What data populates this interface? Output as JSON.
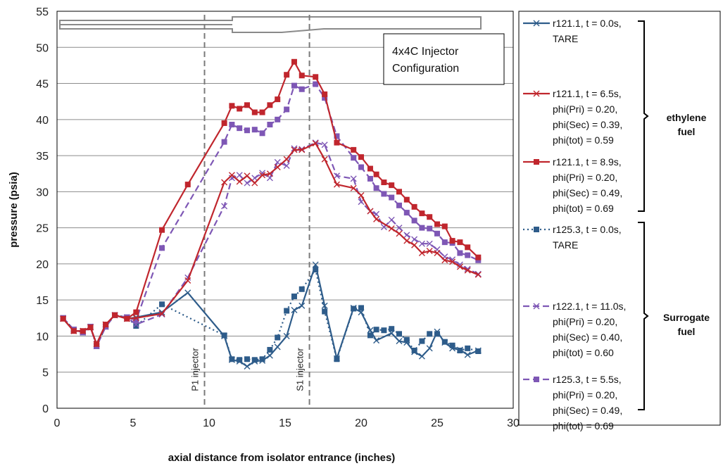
{
  "chart_data": {
    "type": "line",
    "xlabel": "axial distance from isolator entrance (inches)",
    "ylabel": "pressure (psia)",
    "xlim": [
      0,
      30
    ],
    "ylim": [
      0,
      55
    ],
    "xticks": [
      0,
      5,
      10,
      15,
      20,
      25,
      30
    ],
    "yticks": [
      0,
      5,
      10,
      15,
      20,
      25,
      30,
      35,
      40,
      45,
      50,
      55
    ],
    "grid": "horizontal",
    "legend_position": "right",
    "config_box": [
      "4x4C  Injector",
      "Configuration"
    ],
    "vlines": [
      {
        "x": 9.7,
        "label": "P1 injector"
      },
      {
        "x": 16.6,
        "label": "S1 injector"
      }
    ],
    "groups": [
      {
        "lines": [
          "ethylene",
          "fuel"
        ]
      },
      {
        "lines": [
          "Surrogate",
          "fuel"
        ]
      }
    ],
    "series": [
      {
        "name_lines": [
          "r121.1, t = 0.0s,",
          "TARE"
        ],
        "color": "#2E5C8A",
        "dash": "solid",
        "marker": "x",
        "x": [
          0.4,
          1.1,
          1.7,
          2.2,
          2.6,
          3.2,
          3.8,
          4.6,
          5.2,
          6.9,
          8.6,
          11.0,
          11.5,
          12.0,
          12.5,
          13.0,
          13.5,
          14.0,
          14.5,
          15.1,
          15.6,
          16.1,
          17.0,
          17.6,
          18.4,
          19.5,
          20.0,
          20.6,
          21.0,
          22.0,
          22.5,
          23.0,
          23.5,
          24.0,
          24.5,
          25.0,
          25.5,
          26.0,
          26.5,
          27.0,
          27.7
        ],
        "y": [
          12.4,
          10.7,
          10.7,
          11.2,
          8.9,
          11.6,
          12.9,
          12.4,
          12.6,
          13.3,
          16.0,
          10.0,
          6.7,
          6.5,
          5.8,
          6.5,
          6.6,
          7.3,
          8.5,
          10.0,
          13.6,
          14.2,
          19.9,
          14.2,
          6.9,
          13.9,
          13.3,
          10.8,
          9.4,
          10.4,
          9.3,
          9.1,
          7.8,
          7.2,
          8.3,
          10.6,
          9.1,
          8.3,
          8.1,
          7.4,
          8.0
        ]
      },
      {
        "name_lines": [
          "r121.1, t = 6.5s,",
          "phi(Pri) = 0.20,",
          "phi(Sec) = 0.39,",
          "phi(tot) = 0.59"
        ],
        "color": "#C0262D",
        "dash": "solid",
        "marker": "x",
        "x": [
          0.4,
          1.1,
          1.7,
          2.2,
          2.6,
          3.2,
          3.8,
          4.6,
          5.2,
          6.9,
          8.6,
          11.0,
          11.5,
          12.0,
          12.5,
          13.0,
          13.5,
          14.0,
          14.5,
          15.1,
          15.6,
          16.1,
          17.0,
          17.6,
          18.4,
          19.5,
          20.0,
          20.6,
          21.0,
          22.0,
          22.5,
          23.0,
          23.5,
          24.0,
          24.5,
          25.0,
          25.5,
          26.0,
          26.5,
          27.0,
          27.7
        ],
        "y": [
          12.4,
          10.7,
          10.7,
          11.2,
          8.9,
          11.6,
          12.9,
          12.4,
          12.5,
          13.1,
          17.7,
          31.3,
          32.3,
          31.4,
          32.2,
          31.2,
          32.3,
          32.5,
          33.4,
          34.5,
          35.8,
          35.8,
          36.7,
          34.5,
          31.0,
          30.5,
          29.5,
          27.3,
          26.2,
          24.9,
          24.2,
          23.2,
          22.6,
          21.5,
          21.8,
          21.5,
          20.5,
          20.3,
          19.6,
          19.1,
          18.5
        ]
      },
      {
        "name_lines": [
          "r121.1, t = 8.9s,",
          "phi(Pri) = 0.20,",
          "phi(Sec) = 0.49,",
          "phi(tot) = 0.69"
        ],
        "color": "#C0262D",
        "dash": "solid",
        "marker": "square",
        "x": [
          0.4,
          1.1,
          1.7,
          2.2,
          2.6,
          3.2,
          3.8,
          4.6,
          5.2,
          6.9,
          8.6,
          11.0,
          11.5,
          12.0,
          12.5,
          13.0,
          13.5,
          14.0,
          14.5,
          15.1,
          15.6,
          16.1,
          17.0,
          17.6,
          18.4,
          19.5,
          20.0,
          20.6,
          21.0,
          21.5,
          22.0,
          22.5,
          23.0,
          23.5,
          24.0,
          24.5,
          25.0,
          25.5,
          26.0,
          26.5,
          27.0,
          27.7
        ],
        "y": [
          12.4,
          10.7,
          10.7,
          11.2,
          8.9,
          11.6,
          12.9,
          12.4,
          13.3,
          24.7,
          31.0,
          39.5,
          41.9,
          41.5,
          42.0,
          41.0,
          41.0,
          42.0,
          42.8,
          46.2,
          48.0,
          46.1,
          45.9,
          43.5,
          36.8,
          35.8,
          34.8,
          33.2,
          32.4,
          31.3,
          30.9,
          30.0,
          28.9,
          27.9,
          27.0,
          26.5,
          25.5,
          25.2,
          23.2,
          23.0,
          22.3,
          20.9
        ]
      },
      {
        "name_lines": [
          "r125.3, t = 0.0s,",
          "TARE"
        ],
        "color": "#2E5C8A",
        "dash": "dot",
        "marker": "square",
        "x": [
          0.4,
          1.1,
          1.7,
          2.2,
          2.6,
          3.2,
          3.8,
          4.6,
          5.2,
          6.9,
          11.0,
          11.5,
          12.0,
          12.5,
          13.0,
          13.5,
          14.0,
          14.5,
          15.1,
          15.6,
          16.1,
          17.0,
          17.6,
          18.4,
          19.5,
          20.0,
          20.6,
          21.0,
          21.5,
          22.0,
          22.5,
          23.0,
          23.5,
          24.0,
          24.5,
          25.0,
          25.5,
          26.0,
          26.5,
          27.0,
          27.7
        ],
        "y": [
          12.5,
          10.9,
          10.5,
          11.3,
          8.6,
          11.3,
          12.9,
          12.6,
          11.4,
          14.4,
          10.1,
          6.8,
          6.7,
          6.8,
          6.7,
          6.8,
          8.1,
          9.8,
          13.5,
          15.5,
          16.5,
          19.2,
          13.4,
          6.8,
          13.8,
          13.9,
          10.1,
          10.9,
          10.8,
          11.0,
          10.3,
          9.5,
          8.0,
          9.3,
          10.3,
          10.3,
          9.2,
          8.7,
          8.0,
          8.3,
          7.9
        ]
      },
      {
        "name_lines": [
          "r122.1, t = 11.0s,",
          "phi(Pri) = 0.20,",
          "phi(Sec) = 0.40,",
          "phi(tot) = 0.60"
        ],
        "color": "#7E57B5",
        "dash": "dash",
        "marker": "x",
        "x": [
          0.4,
          1.1,
          1.7,
          2.2,
          2.6,
          3.2,
          3.8,
          4.6,
          5.2,
          6.9,
          8.6,
          11.0,
          11.5,
          12.0,
          12.5,
          13.0,
          13.5,
          14.0,
          14.5,
          15.1,
          15.6,
          16.1,
          17.0,
          17.6,
          18.4,
          19.5,
          20.0,
          20.6,
          21.0,
          21.5,
          22.0,
          22.5,
          23.0,
          23.5,
          24.0,
          24.5,
          25.0,
          25.5,
          26.0,
          26.5,
          27.0,
          27.7
        ],
        "y": [
          12.5,
          10.9,
          10.5,
          11.3,
          8.6,
          11.3,
          12.9,
          12.6,
          11.6,
          13.0,
          18.1,
          28.0,
          31.9,
          32.3,
          31.2,
          31.9,
          32.6,
          31.9,
          34.1,
          33.6,
          36.0,
          35.9,
          36.8,
          36.5,
          32.2,
          31.8,
          28.6,
          27.3,
          26.9,
          25.1,
          26.1,
          25.0,
          24.0,
          23.4,
          22.8,
          22.8,
          22.0,
          21.0,
          20.6,
          19.9,
          19.3,
          18.6
        ]
      },
      {
        "name_lines": [
          "r125.3, t = 5.5s,",
          "phi(Pri) = 0.20,",
          "phi(Sec) = 0.49,",
          "phi(tot) = 0.69"
        ],
        "color": "#7E57B5",
        "dash": "dash",
        "marker": "square",
        "x": [
          0.4,
          1.1,
          1.7,
          2.2,
          2.6,
          3.2,
          3.8,
          4.6,
          5.2,
          6.9,
          11.0,
          11.5,
          12.0,
          12.5,
          13.0,
          13.5,
          14.0,
          14.5,
          15.1,
          15.6,
          16.1,
          17.0,
          17.6,
          18.4,
          19.5,
          20.0,
          20.6,
          21.0,
          21.5,
          22.0,
          22.5,
          23.0,
          23.5,
          24.0,
          24.5,
          25.0,
          25.5,
          26.0,
          26.5,
          27.0,
          27.7
        ],
        "y": [
          12.5,
          10.9,
          10.5,
          11.3,
          8.6,
          11.3,
          12.9,
          12.6,
          12.2,
          22.2,
          36.9,
          39.3,
          38.8,
          38.5,
          38.6,
          38.1,
          39.3,
          40.0,
          41.4,
          44.7,
          44.2,
          44.9,
          43.0,
          37.7,
          34.7,
          33.4,
          31.8,
          30.5,
          29.7,
          29.2,
          28.1,
          27.1,
          26.0,
          25.0,
          24.9,
          24.2,
          23.0,
          22.9,
          21.5,
          21.2,
          20.5
        ]
      }
    ]
  }
}
